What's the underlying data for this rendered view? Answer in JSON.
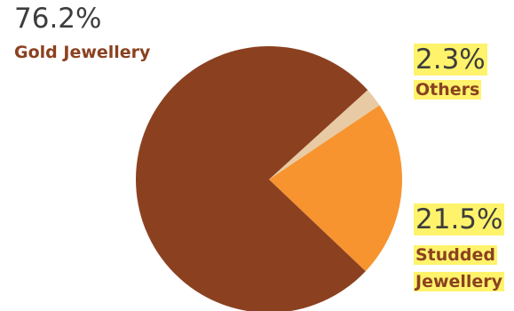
{
  "chart_data": {
    "type": "pie",
    "title": "",
    "slices": [
      {
        "name": "Gold Jewellery",
        "value": 76.2,
        "value_label": "76.2%",
        "color": "#8b4120",
        "label_color": "#8b4120",
        "highlighted": false
      },
      {
        "name": "Others",
        "value": 2.3,
        "value_label": "2.3%",
        "color": "#e8cba4",
        "label_color": "#8b4120",
        "highlighted": true
      },
      {
        "name": "Studded Jewellery",
        "value": 21.5,
        "value_label": "21.5%",
        "color": "#f7942f",
        "label_color": "#8b4120",
        "highlighted": true
      }
    ],
    "highlight_color": "#fff36b",
    "start": "Studded Jewellery slice begins at the bottom-right, running counter-clockwise through the right side"
  }
}
